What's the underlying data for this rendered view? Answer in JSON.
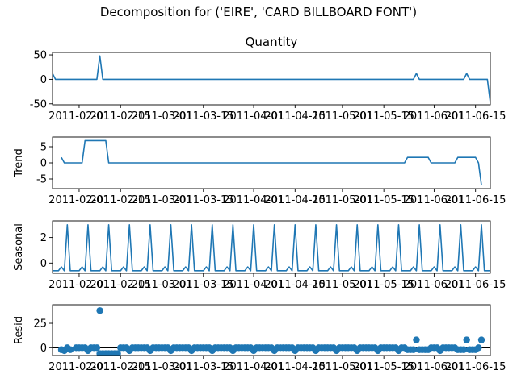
{
  "figure": {
    "suptitle": "Decomposition for ('EIRE', 'CARD BILLBOARD FONT')",
    "line_color": "#1f77b4",
    "marker_color": "#1f77b4",
    "zero_line_color": "#000000"
  },
  "chart_data": [
    {
      "type": "line",
      "title": "Quantity",
      "ylabel": "",
      "xlim": [
        "2011-01-23",
        "2011-06-20"
      ],
      "ylim": [
        -52,
        55
      ],
      "yticks": [
        -50,
        0,
        50
      ],
      "xticks": [
        "2011-02-01",
        "2011-02-15",
        "2011-03-01",
        "2011-03-15",
        "2011-04-01",
        "2011-04-15",
        "2011-05-01",
        "2011-05-15",
        "2011-06-01",
        "2011-06-15"
      ],
      "grid": false,
      "series": [
        {
          "points": [
            [
              "2011-01-23",
              12
            ],
            [
              "2011-01-24",
              0
            ],
            [
              "2011-02-07",
              0
            ],
            [
              "2011-02-08",
              48
            ],
            [
              "2011-02-09",
              0
            ],
            [
              "2011-05-25",
              0
            ],
            [
              "2011-05-26",
              12
            ],
            [
              "2011-05-27",
              0
            ],
            [
              "2011-06-11",
              0
            ],
            [
              "2011-06-12",
              12
            ],
            [
              "2011-06-13",
              0
            ],
            [
              "2011-06-19",
              0
            ],
            [
              "2011-06-20",
              -48
            ]
          ]
        }
      ]
    },
    {
      "type": "line",
      "title": "",
      "ylabel": "Trend",
      "xlim": [
        "2011-01-23",
        "2011-06-20"
      ],
      "ylim": [
        -8,
        8
      ],
      "yticks": [
        -5,
        0,
        5
      ],
      "xticks": [
        "2011-02-01",
        "2011-02-15",
        "2011-03-01",
        "2011-03-15",
        "2011-04-01",
        "2011-04-15",
        "2011-05-01",
        "2011-05-15",
        "2011-06-01",
        "2011-06-15"
      ],
      "grid": false,
      "series": [
        {
          "points": [
            [
              "2011-01-26",
              1.7
            ],
            [
              "2011-01-27",
              0
            ],
            [
              "2011-02-02",
              0
            ],
            [
              "2011-02-03",
              6.9
            ],
            [
              "2011-02-10",
              6.9
            ],
            [
              "2011-02-11",
              0
            ],
            [
              "2011-05-22",
              0
            ],
            [
              "2011-05-23",
              1.7
            ],
            [
              "2011-05-30",
              1.7
            ],
            [
              "2011-05-31",
              0
            ],
            [
              "2011-06-08",
              0
            ],
            [
              "2011-06-09",
              1.7
            ],
            [
              "2011-06-15",
              1.7
            ],
            [
              "2011-06-16",
              0
            ],
            [
              "2011-06-17",
              -6.9
            ]
          ]
        }
      ]
    },
    {
      "type": "line",
      "title": "",
      "ylabel": "Seasonal",
      "xlim": [
        "2011-01-23",
        "2011-06-20"
      ],
      "ylim": [
        -0.8,
        3.3
      ],
      "yticks": [
        0,
        2
      ],
      "xticks": [
        "2011-02-01",
        "2011-02-15",
        "2011-03-01",
        "2011-03-15",
        "2011-04-01",
        "2011-04-15",
        "2011-05-01",
        "2011-05-15",
        "2011-06-01",
        "2011-06-15"
      ],
      "grid": false,
      "series": [
        {
          "start": "2011-01-23",
          "period": 7,
          "cycles": 22,
          "pattern": [
            -0.6,
            -0.6,
            -0.6,
            -0.3,
            -0.6,
            3.0,
            -0.6
          ]
        }
      ]
    },
    {
      "type": "scatter",
      "title": "",
      "ylabel": "Resid",
      "xlim": [
        "2011-01-23",
        "2011-06-20"
      ],
      "ylim": [
        -8,
        44
      ],
      "yticks": [
        0,
        25
      ],
      "xticks": [
        "2011-02-01",
        "2011-02-15",
        "2011-03-01",
        "2011-03-15",
        "2011-04-01",
        "2011-04-15",
        "2011-05-01",
        "2011-05-15",
        "2011-06-01",
        "2011-06-15"
      ],
      "grid": false,
      "zero_line": true,
      "series": [
        {
          "points": [
            [
              "2011-01-26",
              -2
            ],
            [
              "2011-01-27",
              -3
            ],
            [
              "2011-01-28",
              0
            ],
            [
              "2011-01-29",
              -2
            ],
            [
              "2011-01-31",
              0
            ],
            [
              "2011-02-01",
              0
            ],
            [
              "2011-02-02",
              0
            ],
            [
              "2011-02-03",
              0
            ],
            [
              "2011-02-04",
              -3
            ],
            [
              "2011-02-05",
              0
            ],
            [
              "2011-02-06",
              0
            ],
            [
              "2011-02-07",
              0
            ],
            [
              "2011-02-08",
              -6
            ],
            [
              "2011-02-09",
              -6
            ],
            [
              "2011-02-10",
              -6
            ],
            [
              "2011-02-11",
              -6
            ],
            [
              "2011-02-08",
              38
            ],
            [
              "2011-02-12",
              -6
            ],
            [
              "2011-02-13",
              -6
            ],
            [
              "2011-02-14",
              -6
            ],
            [
              "2011-02-15",
              0
            ],
            [
              "2011-02-16",
              0
            ],
            [
              "2011-02-17",
              0
            ],
            [
              "2011-02-18",
              -3
            ],
            [
              "2011-02-19",
              0
            ],
            [
              "2011-02-20",
              0
            ],
            [
              "2011-02-21",
              0
            ],
            [
              "2011-02-22",
              0
            ],
            [
              "2011-02-23",
              0
            ],
            [
              "2011-02-24",
              0
            ],
            [
              "2011-02-25",
              -3
            ],
            [
              "2011-02-26",
              0
            ],
            [
              "2011-02-27",
              0
            ],
            [
              "2011-02-28",
              0
            ],
            [
              "2011-03-01",
              0
            ],
            [
              "2011-03-02",
              0
            ],
            [
              "2011-03-03",
              0
            ],
            [
              "2011-03-04",
              -3
            ],
            [
              "2011-03-05",
              0
            ],
            [
              "2011-03-06",
              0
            ],
            [
              "2011-03-07",
              0
            ],
            [
              "2011-03-08",
              0
            ],
            [
              "2011-03-09",
              0
            ],
            [
              "2011-03-10",
              0
            ],
            [
              "2011-03-11",
              -3
            ],
            [
              "2011-03-12",
              0
            ],
            [
              "2011-03-13",
              0
            ],
            [
              "2011-03-14",
              0
            ],
            [
              "2011-03-15",
              0
            ],
            [
              "2011-03-16",
              0
            ],
            [
              "2011-03-17",
              0
            ],
            [
              "2011-03-18",
              -3
            ],
            [
              "2011-03-19",
              0
            ],
            [
              "2011-03-20",
              0
            ],
            [
              "2011-03-21",
              0
            ],
            [
              "2011-03-22",
              0
            ],
            [
              "2011-03-23",
              0
            ],
            [
              "2011-03-24",
              0
            ],
            [
              "2011-03-25",
              -3
            ],
            [
              "2011-03-26",
              0
            ],
            [
              "2011-03-27",
              0
            ],
            [
              "2011-03-28",
              0
            ],
            [
              "2011-03-29",
              0
            ],
            [
              "2011-03-30",
              0
            ],
            [
              "2011-03-31",
              0
            ],
            [
              "2011-04-01",
              -3
            ],
            [
              "2011-04-02",
              0
            ],
            [
              "2011-04-03",
              0
            ],
            [
              "2011-04-04",
              0
            ],
            [
              "2011-04-05",
              0
            ],
            [
              "2011-04-06",
              0
            ],
            [
              "2011-04-07",
              0
            ],
            [
              "2011-04-08",
              -3
            ],
            [
              "2011-04-09",
              0
            ],
            [
              "2011-04-10",
              0
            ],
            [
              "2011-04-11",
              0
            ],
            [
              "2011-04-12",
              0
            ],
            [
              "2011-04-13",
              0
            ],
            [
              "2011-04-14",
              0
            ],
            [
              "2011-04-15",
              -3
            ],
            [
              "2011-04-16",
              0
            ],
            [
              "2011-04-17",
              0
            ],
            [
              "2011-04-18",
              0
            ],
            [
              "2011-04-19",
              0
            ],
            [
              "2011-04-20",
              0
            ],
            [
              "2011-04-21",
              0
            ],
            [
              "2011-04-22",
              -3
            ],
            [
              "2011-04-23",
              0
            ],
            [
              "2011-04-24",
              0
            ],
            [
              "2011-04-25",
              0
            ],
            [
              "2011-04-26",
              0
            ],
            [
              "2011-04-27",
              0
            ],
            [
              "2011-04-28",
              0
            ],
            [
              "2011-04-29",
              -3
            ],
            [
              "2011-04-30",
              0
            ],
            [
              "2011-05-01",
              0
            ],
            [
              "2011-05-02",
              0
            ],
            [
              "2011-05-03",
              0
            ],
            [
              "2011-05-04",
              0
            ],
            [
              "2011-05-05",
              0
            ],
            [
              "2011-05-06",
              -3
            ],
            [
              "2011-05-07",
              0
            ],
            [
              "2011-05-08",
              0
            ],
            [
              "2011-05-09",
              0
            ],
            [
              "2011-05-10",
              0
            ],
            [
              "2011-05-11",
              0
            ],
            [
              "2011-05-12",
              0
            ],
            [
              "2011-05-13",
              -3
            ],
            [
              "2011-05-14",
              0
            ],
            [
              "2011-05-15",
              0
            ],
            [
              "2011-05-16",
              0
            ],
            [
              "2011-05-17",
              0
            ],
            [
              "2011-05-18",
              0
            ],
            [
              "2011-05-19",
              0
            ],
            [
              "2011-05-20",
              -3
            ],
            [
              "2011-05-21",
              0
            ],
            [
              "2011-05-22",
              0
            ],
            [
              "2011-05-23",
              -2
            ],
            [
              "2011-05-24",
              -2
            ],
            [
              "2011-05-25",
              -2
            ],
            [
              "2011-05-26",
              8
            ],
            [
              "2011-05-27",
              -2
            ],
            [
              "2011-05-28",
              -2
            ],
            [
              "2011-05-29",
              -2
            ],
            [
              "2011-05-30",
              -2
            ],
            [
              "2011-05-31",
              0
            ],
            [
              "2011-06-01",
              0
            ],
            [
              "2011-06-02",
              0
            ],
            [
              "2011-06-03",
              -3
            ],
            [
              "2011-06-04",
              0
            ],
            [
              "2011-06-05",
              0
            ],
            [
              "2011-06-06",
              0
            ],
            [
              "2011-06-07",
              0
            ],
            [
              "2011-06-08",
              0
            ],
            [
              "2011-06-09",
              -2
            ],
            [
              "2011-06-10",
              -2
            ],
            [
              "2011-06-11",
              -2
            ],
            [
              "2011-06-12",
              8
            ],
            [
              "2011-06-13",
              -2
            ],
            [
              "2011-06-14",
              -2
            ],
            [
              "2011-06-15",
              -2
            ],
            [
              "2011-06-16",
              0
            ],
            [
              "2011-06-17",
              8
            ]
          ]
        }
      ]
    }
  ]
}
